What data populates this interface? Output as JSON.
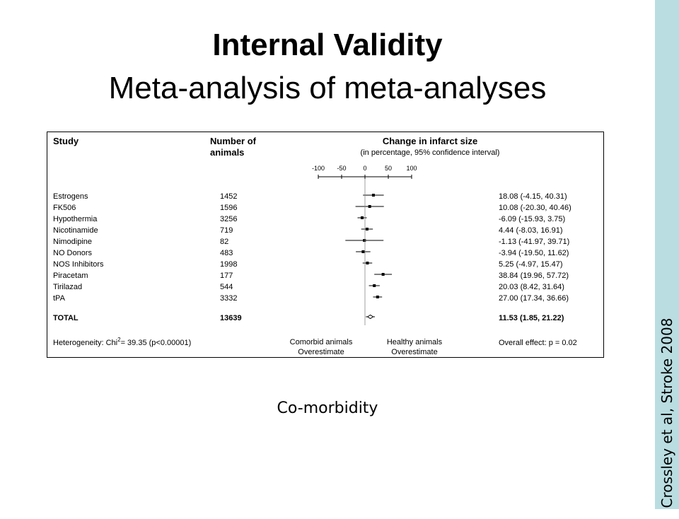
{
  "slide": {
    "title": "Internal Validity",
    "subtitle": "Meta-analysis of meta-analyses",
    "caption": "Co-morbidity",
    "sidebar_citation": "Crossley et al, Stroke 2008",
    "sidebar_color": "#b9dde1"
  },
  "chart_data": {
    "type": "forest",
    "headers": {
      "study": "Study",
      "animals_line1": "Number of",
      "animals_line2": "animals",
      "effect_line1": "Change in infarct size",
      "effect_line2": "(in percentage, 95% confidence interval)"
    },
    "axis": {
      "ticks": [
        -100,
        -50,
        0,
        50,
        100
      ],
      "tick_labels": [
        "-100",
        "-50",
        "0",
        "50",
        "100"
      ],
      "range": [
        -100,
        100
      ]
    },
    "studies": [
      {
        "name": "Estrogens",
        "n": "1452",
        "estimate": 18.08,
        "lower": -4.15,
        "upper": 40.31,
        "ci_text": "18.08 (-4.15, 40.31)"
      },
      {
        "name": "FK506",
        "n": "1596",
        "estimate": 10.08,
        "lower": -20.3,
        "upper": 40.46,
        "ci_text": "10.08 (-20.30, 40.46)"
      },
      {
        "name": "Hypothermia",
        "n": "3256",
        "estimate": -6.09,
        "lower": -15.93,
        "upper": 3.75,
        "ci_text": "-6.09 (-15.93, 3.75)"
      },
      {
        "name": "Nicotinamide",
        "n": "719",
        "estimate": 4.44,
        "lower": -8.03,
        "upper": 16.91,
        "ci_text": "4.44 (-8.03, 16.91)"
      },
      {
        "name": "Nimodipine",
        "n": "82",
        "estimate": -1.13,
        "lower": -41.97,
        "upper": 39.71,
        "ci_text": "-1.13 (-41.97, 39.71)"
      },
      {
        "name": "NO Donors",
        "n": "483",
        "estimate": -3.94,
        "lower": -19.5,
        "upper": 11.62,
        "ci_text": "-3.94 (-19.50, 11.62)"
      },
      {
        "name": "NOS Inhibitors",
        "n": "1998",
        "estimate": 5.25,
        "lower": -4.97,
        "upper": 15.47,
        "ci_text": "5.25 (-4.97, 15.47)"
      },
      {
        "name": "Piracetam",
        "n": "177",
        "estimate": 38.84,
        "lower": 19.96,
        "upper": 57.72,
        "ci_text": "38.84 (19.96, 57.72)"
      },
      {
        "name": "Tirilazad",
        "n": "544",
        "estimate": 20.03,
        "lower": 8.42,
        "upper": 31.64,
        "ci_text": "20.03 (8.42, 31.64)"
      },
      {
        "name": "tPA",
        "n": "3332",
        "estimate": 27.0,
        "lower": 17.34,
        "upper": 36.66,
        "ci_text": "27.00 (17.34, 36.66)"
      }
    ],
    "total": {
      "name": "TOTAL",
      "n": "13639",
      "estimate": 11.53,
      "lower": 1.85,
      "upper": 21.22,
      "ci_text": "11.53 (1.85, 21.22)"
    },
    "footer": {
      "heterogeneity_prefix": "Heterogeneity: Chi",
      "heterogeneity_sup": "2",
      "heterogeneity_suffix": "= 39.35  (p<0.00001)",
      "left_label_line1": "Comorbid animals",
      "left_label_line2": "Overestimate",
      "right_label_line1": "Healthy animals",
      "right_label_line2": "Overestimate",
      "overall_effect": "Overall effect: p = 0.02"
    }
  }
}
